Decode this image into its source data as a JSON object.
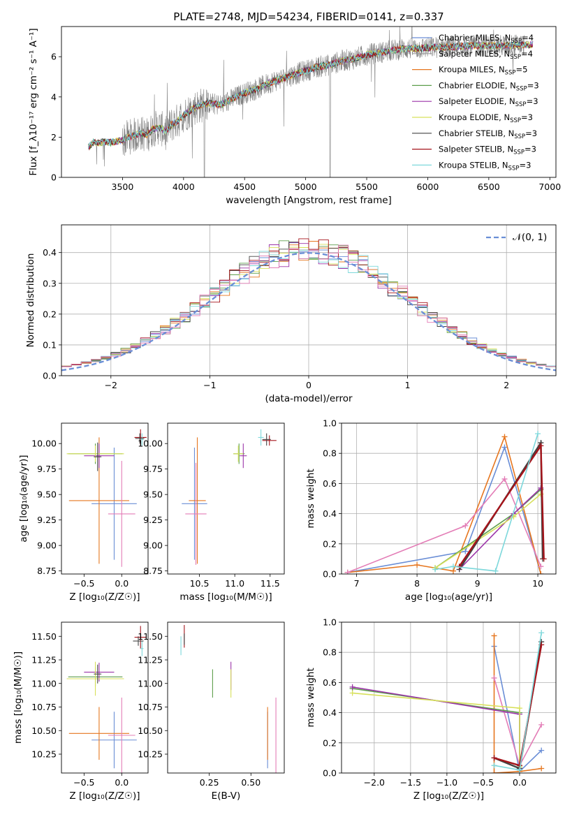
{
  "colors": {
    "Chabrier MILES": "#6a8ed6",
    "Salpeter MILES": "#9a9a9a",
    "Kroupa MILES": "#e6761f",
    "Chabrier ELODIE": "#5d9e4c",
    "Salpeter ELODIE": "#9b34a8",
    "Kroupa ELODIE": "#d7e05a",
    "Chabrier STELIB": "#444444",
    "Salpeter STELIB": "#a5141b",
    "Kroupa STELIB": "#7dd8db",
    "pink": "#e37cb6",
    "data": "#808080"
  },
  "chart_data": [
    {
      "id": "spectrum",
      "type": "line",
      "title": "PLATE=2748, MJD=54234, FIBERID=0141, z=0.337",
      "xlabel": "wavelength [Angstrom, rest frame]",
      "ylabel": "Flux [f_λ10⁻¹⁷ erg cm⁻² s⁻¹ A⁻¹]",
      "xlim": [
        3000,
        7050
      ],
      "ylim": [
        0,
        7.5
      ],
      "xticks": [
        3500,
        4000,
        4500,
        5000,
        5500,
        6000,
        6500,
        7000
      ],
      "yticks": [
        0,
        2,
        4,
        6
      ],
      "grid": false,
      "legend_position": "upper-right",
      "model_x": [
        3220,
        3260,
        3300,
        3350,
        3400,
        3450,
        3500,
        3550,
        3600,
        3650,
        3700,
        3750,
        3800,
        3850,
        3900,
        3950,
        4000,
        4100,
        4200,
        4300,
        4400,
        4500,
        4600,
        4700,
        4800,
        4900,
        5000,
        5100,
        5200,
        5300,
        5400,
        5500,
        5600,
        5700,
        5800,
        5900,
        6000,
        6200,
        6400,
        6600,
        6800
      ],
      "model_y": [
        1.5,
        1.75,
        1.7,
        1.78,
        1.72,
        1.8,
        1.85,
        2.0,
        2.1,
        2.2,
        2.1,
        2.4,
        2.5,
        2.3,
        2.6,
        2.8,
        3.1,
        3.5,
        3.7,
        3.6,
        3.9,
        4.2,
        4.4,
        4.7,
        4.9,
        5.1,
        5.3,
        5.5,
        5.6,
        5.8,
        5.9,
        6.1,
        6.2,
        6.3,
        6.4,
        6.4,
        6.45,
        6.5,
        6.55,
        6.55,
        6.6
      ],
      "legend": [
        {
          "label": "Chabrier MILES, N",
          "sub": "SSP",
          "tail": "=4"
        },
        {
          "label": "Salpeter MILES, N",
          "sub": "SSP",
          "tail": "=4"
        },
        {
          "label": "Kroupa MILES, N",
          "sub": "SSP",
          "tail": "=5"
        },
        {
          "label": "Chabrier ELODIE, N",
          "sub": "SSP",
          "tail": "=3"
        },
        {
          "label": "Salpeter ELODIE, N",
          "sub": "SSP",
          "tail": "=3"
        },
        {
          "label": "Kroupa ELODIE, N",
          "sub": "SSP",
          "tail": "=3"
        },
        {
          "label": "Chabrier STELIB, N",
          "sub": "SSP",
          "tail": "=3"
        },
        {
          "label": "Salpeter STELIB, N",
          "sub": "SSP",
          "tail": "=3"
        },
        {
          "label": "Kroupa STELIB, N",
          "sub": "SSP",
          "tail": "=3"
        }
      ]
    },
    {
      "id": "residuals",
      "type": "line",
      "xlabel": "(data-model)/error",
      "ylabel": "Normed distribution",
      "xlim": [
        -2.5,
        2.5
      ],
      "ylim": [
        0,
        0.49
      ],
      "xticks": [
        -2,
        -1,
        0,
        1,
        2
      ],
      "yticks": [
        0.0,
        0.1,
        0.2,
        0.3,
        0.4
      ],
      "grid": true,
      "legend": "𝒩(0, 1)",
      "legend_position": "upper-right",
      "bin_width": 0.1
    },
    {
      "id": "age_vs_Z",
      "type": "scatter",
      "xlabel": "Z [log₁₀(Z/Z☉)]",
      "ylabel": "age  [log₁₀(age/yr)]",
      "xlim": [
        -0.8,
        0.35
      ],
      "ylim": [
        8.72,
        10.2
      ],
      "xticks": [
        -0.5,
        0.0
      ],
      "yticks": [
        8.75,
        9.0,
        9.25,
        9.5,
        9.75,
        10.0
      ],
      "points": [
        {
          "series": "Chabrier MILES",
          "x": -0.1,
          "y": 9.41,
          "xerr": 0.3,
          "yerr": 0.55
        },
        {
          "series": "Kroupa MILES",
          "x": -0.3,
          "y": 9.44,
          "xerr": 0.4,
          "yerr": 0.62
        },
        {
          "series": "pink",
          "x": 0.0,
          "y": 9.31,
          "xerr": 0.18,
          "yerr": 0.52
        },
        {
          "series": "Chabrier ELODIE",
          "x": -0.35,
          "y": 9.9,
          "xerr": 0.36,
          "yerr": 0.1
        },
        {
          "series": "Salpeter ELODIE",
          "x": -0.3,
          "y": 9.88,
          "xerr": 0.2,
          "yerr": 0.12
        },
        {
          "series": "Kroupa ELODIE",
          "x": -0.35,
          "y": 9.9,
          "xerr": 0.38,
          "yerr": 0.08
        },
        {
          "series": "Chabrier STELIB",
          "x": -0.32,
          "y": 9.87,
          "xerr": 0.05,
          "yerr": 0.14
        },
        {
          "series": "Salpeter STELIB",
          "x": 0.25,
          "y": 10.06,
          "xerr": 0.08,
          "yerr": 0.08
        },
        {
          "series": "Kroupa STELIB",
          "x": 0.27,
          "y": 10.04,
          "xerr": 0.02,
          "yerr": 0.06
        },
        {
          "series": "Chabrier STELIB",
          "x": 0.24,
          "y": 10.05,
          "xerr": 0.06,
          "yerr": 0.05
        }
      ]
    },
    {
      "id": "age_vs_mass",
      "type": "scatter",
      "xlabel": "mass [log₁₀(M/M☉)]",
      "ylabel": "",
      "xlim": [
        10.05,
        11.7
      ],
      "ylim": [
        8.72,
        10.2
      ],
      "xticks": [
        10.5,
        11.0,
        11.5
      ],
      "yticks": [
        8.75,
        9.0,
        9.25,
        9.5,
        9.75,
        10.0
      ],
      "points": [
        {
          "series": "Chabrier MILES",
          "x": 10.43,
          "y": 9.41,
          "xerr": 0.18,
          "yerr": 0.55
        },
        {
          "series": "Kroupa MILES",
          "x": 10.47,
          "y": 9.44,
          "xerr": 0.12,
          "yerr": 0.62
        },
        {
          "series": "pink",
          "x": 10.45,
          "y": 9.31,
          "xerr": 0.15,
          "yerr": 0.5
        },
        {
          "series": "Chabrier ELODIE",
          "x": 11.06,
          "y": 9.9,
          "xerr": 0.08,
          "yerr": 0.1
        },
        {
          "series": "Salpeter ELODIE",
          "x": 11.12,
          "y": 9.88,
          "xerr": 0.05,
          "yerr": 0.12
        },
        {
          "series": "Kroupa ELODIE",
          "x": 11.05,
          "y": 9.9,
          "xerr": 0.07,
          "yerr": 0.08
        },
        {
          "series": "Salpeter STELIB",
          "x": 11.49,
          "y": 10.03,
          "xerr": 0.1,
          "yerr": 0.05
        },
        {
          "series": "Kroupa STELIB",
          "x": 11.37,
          "y": 10.06,
          "xerr": 0.04,
          "yerr": 0.08
        },
        {
          "series": "Chabrier STELIB",
          "x": 11.45,
          "y": 10.04,
          "xerr": 0.06,
          "yerr": 0.06
        }
      ]
    },
    {
      "id": "massweight_vs_age",
      "type": "line",
      "xlabel": "age  [log₁₀(age/yr)]",
      "ylabel": "mass weight",
      "xlim": [
        6.75,
        10.3
      ],
      "ylim": [
        0,
        1.0
      ],
      "xticks": [
        7,
        8,
        9,
        10
      ],
      "yticks": [
        0.0,
        0.2,
        0.4,
        0.6,
        0.8,
        1.0
      ],
      "grid": true,
      "series": [
        {
          "name": "Chabrier MILES",
          "x": [
            6.85,
            8.8,
            9.45,
            10.05
          ],
          "y": [
            0.01,
            0.15,
            0.84,
            0.0
          ]
        },
        {
          "name": "Kroupa MILES",
          "x": [
            6.85,
            8.0,
            8.6,
            9.45,
            10.05
          ],
          "y": [
            0.01,
            0.06,
            0.02,
            0.91,
            0.0
          ]
        },
        {
          "name": "pink",
          "x": [
            6.85,
            8.8,
            9.45,
            10.05
          ],
          "y": [
            0.01,
            0.32,
            0.63,
            0.05
          ]
        },
        {
          "name": "Chabrier ELODIE",
          "x": [
            8.3,
            9.6,
            10.05
          ],
          "y": [
            0.04,
            0.4,
            0.56
          ]
        },
        {
          "name": "Salpeter ELODIE",
          "x": [
            8.7,
            9.6,
            10.05
          ],
          "y": [
            0.03,
            0.4,
            0.57
          ]
        },
        {
          "name": "Kroupa ELODIE",
          "x": [
            8.3,
            9.6,
            10.05
          ],
          "y": [
            0.04,
            0.38,
            0.53
          ]
        },
        {
          "name": "Chabrier STELIB",
          "x": [
            8.7,
            10.05,
            10.08
          ],
          "y": [
            0.03,
            0.87,
            0.1
          ]
        },
        {
          "name": "Salpeter STELIB",
          "x": [
            8.7,
            10.05,
            10.1
          ],
          "y": [
            0.05,
            0.85,
            0.1
          ]
        },
        {
          "name": "Kroupa STELIB",
          "x": [
            8.3,
            8.6,
            9.3,
            10.0
          ],
          "y": [
            0.03,
            0.05,
            0.02,
            0.93
          ]
        }
      ]
    },
    {
      "id": "mass_vs_Z",
      "type": "scatter",
      "xlabel": "Z [log₁₀(Z/Z☉)]",
      "ylabel": "mass [log₁₀(M/M☉)]",
      "xlim": [
        -0.8,
        0.35
      ],
      "ylim": [
        10.05,
        11.65
      ],
      "xticks": [
        -0.5,
        0.0
      ],
      "yticks": [
        10.25,
        10.5,
        10.75,
        11.0,
        11.25,
        11.5
      ],
      "points": [
        {
          "series": "Chabrier MILES",
          "x": -0.1,
          "y": 10.4,
          "xerr": 0.3,
          "yerr": 0.3
        },
        {
          "series": "Kroupa MILES",
          "x": -0.3,
          "y": 10.47,
          "xerr": 0.4,
          "yerr": 0.28
        },
        {
          "series": "pink",
          "x": 0.0,
          "y": 10.45,
          "xerr": 0.18,
          "yerr": 0.4
        },
        {
          "series": "Chabrier ELODIE",
          "x": -0.35,
          "y": 11.07,
          "xerr": 0.36,
          "yerr": 0.1
        },
        {
          "series": "Salpeter ELODIE",
          "x": -0.3,
          "y": 11.12,
          "xerr": 0.2,
          "yerr": 0.1
        },
        {
          "series": "Kroupa ELODIE",
          "x": -0.35,
          "y": 11.05,
          "xerr": 0.38,
          "yerr": 0.18
        },
        {
          "series": "Chabrier STELIB",
          "x": -0.32,
          "y": 11.1,
          "xerr": 0.05,
          "yerr": 0.1
        },
        {
          "series": "Salpeter STELIB",
          "x": 0.25,
          "y": 11.49,
          "xerr": 0.08,
          "yerr": 0.12
        },
        {
          "series": "Kroupa STELIB",
          "x": 0.27,
          "y": 11.37,
          "xerr": 0.02,
          "yerr": 0.08
        },
        {
          "series": "Chabrier STELIB",
          "x": 0.22,
          "y": 11.45,
          "xerr": 0.07,
          "yerr": 0.05
        }
      ]
    },
    {
      "id": "mass_vs_EBV",
      "type": "scatter",
      "xlabel": "E(B-V)",
      "ylabel": "",
      "xlim": [
        0.0,
        0.7
      ],
      "ylim": [
        10.05,
        11.65
      ],
      "xticks": [
        0.25,
        0.5
      ],
      "yticks": [
        10.25,
        10.5,
        10.75,
        11.0,
        11.25,
        11.5
      ],
      "points": [
        {
          "series": "Chabrier MILES",
          "x": 0.6,
          "y": 10.4,
          "xerr": 0,
          "yerr": 0.3
        },
        {
          "series": "Kroupa MILES",
          "x": 0.6,
          "y": 10.47,
          "xerr": 0,
          "yerr": 0.28
        },
        {
          "series": "pink",
          "x": 0.65,
          "y": 10.45,
          "xerr": 0,
          "yerr": 0.4
        },
        {
          "series": "Chabrier ELODIE",
          "x": 0.27,
          "y": 11.0,
          "xerr": 0,
          "yerr": 0.15
        },
        {
          "series": "Salpeter ELODIE",
          "x": 0.38,
          "y": 11.08,
          "xerr": 0,
          "yerr": 0.15
        },
        {
          "series": "Kroupa ELODIE",
          "x": 0.38,
          "y": 11.0,
          "xerr": 0,
          "yerr": 0.15
        },
        {
          "series": "Salpeter STELIB",
          "x": 0.1,
          "y": 11.5,
          "xerr": 0,
          "yerr": 0.12
        },
        {
          "series": "Kroupa STELIB",
          "x": 0.08,
          "y": 11.4,
          "xerr": 0,
          "yerr": 0.1
        },
        {
          "series": "Chabrier STELIB",
          "x": 0.1,
          "y": 11.47,
          "xerr": 0,
          "yerr": 0.06
        }
      ]
    },
    {
      "id": "massweight_vs_Z",
      "type": "line",
      "xlabel": "Z [log₁₀(Z/Z☉)]",
      "ylabel": "mass weight",
      "xlim": [
        -2.45,
        0.5
      ],
      "ylim": [
        0,
        1.0
      ],
      "xticks": [
        -2.0,
        -1.5,
        -1.0,
        -0.5,
        0.0
      ],
      "yticks": [
        0.0,
        0.2,
        0.4,
        0.6,
        0.8,
        1.0
      ],
      "grid": true,
      "series": [
        {
          "name": "Chabrier MILES",
          "x": [
            -0.35,
            0.0,
            0.3
          ],
          "y": [
            0.84,
            0.01,
            0.15
          ]
        },
        {
          "name": "Kroupa MILES",
          "x": [
            -0.35,
            -0.35,
            0.0,
            0.3
          ],
          "y": [
            0.91,
            0.0,
            0.01,
            0.03
          ]
        },
        {
          "name": "pink",
          "x": [
            -0.35,
            0.0,
            0.3
          ],
          "y": [
            0.63,
            0.05,
            0.32
          ]
        },
        {
          "name": "Chabrier ELODIE",
          "x": [
            -2.3,
            0.0,
            0.0
          ],
          "y": [
            0.56,
            0.4,
            0.04
          ]
        },
        {
          "name": "Salpeter ELODIE",
          "x": [
            -2.3,
            0.0,
            0.0
          ],
          "y": [
            0.57,
            0.39,
            0.03
          ]
        },
        {
          "name": "Kroupa ELODIE",
          "x": [
            -2.3,
            0.0,
            0.0
          ],
          "y": [
            0.53,
            0.43,
            0.04
          ]
        },
        {
          "name": "Chabrier STELIB",
          "x": [
            -0.35,
            0.0,
            0.3
          ],
          "y": [
            0.1,
            0.03,
            0.87
          ]
        },
        {
          "name": "Salpeter STELIB",
          "x": [
            -0.35,
            0.0,
            0.3
          ],
          "y": [
            0.1,
            0.05,
            0.85
          ]
        },
        {
          "name": "Kroupa STELIB",
          "x": [
            -0.35,
            0.0,
            0.3
          ],
          "y": [
            0.05,
            0.02,
            0.93
          ]
        }
      ]
    }
  ]
}
